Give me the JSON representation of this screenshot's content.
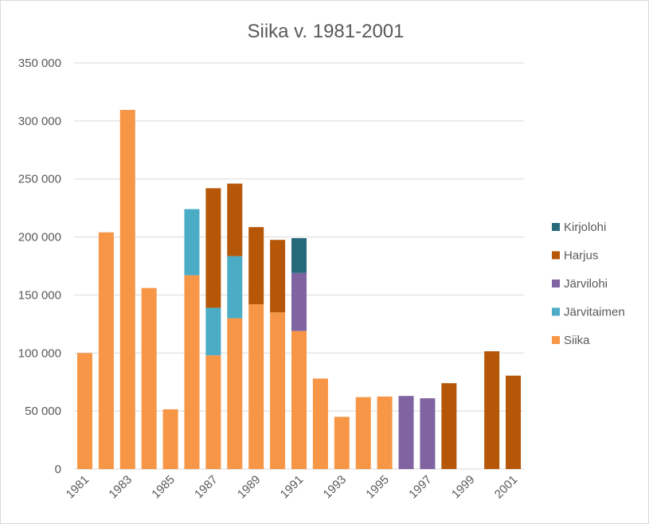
{
  "chart_data": {
    "type": "bar",
    "stacked": true,
    "title": "Siika v. 1981-2001",
    "xlabel": "",
    "ylabel": "",
    "ylim": [
      0,
      350000
    ],
    "yticks": [
      0,
      50000,
      100000,
      150000,
      200000,
      250000,
      300000,
      350000
    ],
    "ytick_labels": [
      "0",
      "50 000",
      "100 000",
      "150 000",
      "200 000",
      "250 000",
      "300 000",
      "350 000"
    ],
    "grid": true,
    "legend_position": "right",
    "categories": [
      "1981",
      "1982",
      "1983",
      "1984",
      "1985",
      "1986",
      "1987",
      "1988",
      "1989",
      "1990",
      "1991",
      "1992",
      "1993",
      "1994",
      "1995",
      "1996",
      "1997",
      "1998",
      "1999",
      "2000",
      "2001"
    ],
    "xtick_labels_shown": [
      "1981",
      "1983",
      "1985",
      "1987",
      "1989",
      "1991",
      "1993",
      "1995",
      "1997",
      "1999",
      "2001"
    ],
    "series": [
      {
        "name": "Siika",
        "color": "#F79646",
        "values": [
          100000,
          204000,
          309500,
          156000,
          51500,
          167000,
          98000,
          130000,
          142000,
          135000,
          119000,
          78000,
          45000,
          62000,
          62500,
          0,
          0,
          0,
          0,
          0,
          0
        ]
      },
      {
        "name": "Järvitaimen",
        "color": "#4BACC6",
        "values": [
          0,
          0,
          0,
          0,
          0,
          57000,
          41000,
          53500,
          0,
          0,
          0,
          0,
          0,
          0,
          0,
          0,
          0,
          0,
          0,
          0,
          0
        ]
      },
      {
        "name": "Järvilohi",
        "color": "#8064A2",
        "values": [
          0,
          0,
          0,
          0,
          0,
          0,
          0,
          0,
          0,
          0,
          50000,
          0,
          0,
          0,
          0,
          63000,
          61000,
          0,
          0,
          0,
          0
        ]
      },
      {
        "name": "Harjus",
        "color": "#B65708",
        "values": [
          0,
          0,
          0,
          0,
          0,
          0,
          103000,
          62500,
          66500,
          62500,
          0,
          0,
          0,
          0,
          0,
          0,
          0,
          74000,
          0,
          101500,
          80500
        ]
      },
      {
        "name": "Kirjolohi",
        "color": "#276A7C",
        "values": [
          0,
          0,
          0,
          0,
          0,
          0,
          0,
          0,
          0,
          0,
          30000,
          0,
          0,
          0,
          0,
          0,
          0,
          0,
          0,
          0,
          0
        ]
      }
    ]
  }
}
